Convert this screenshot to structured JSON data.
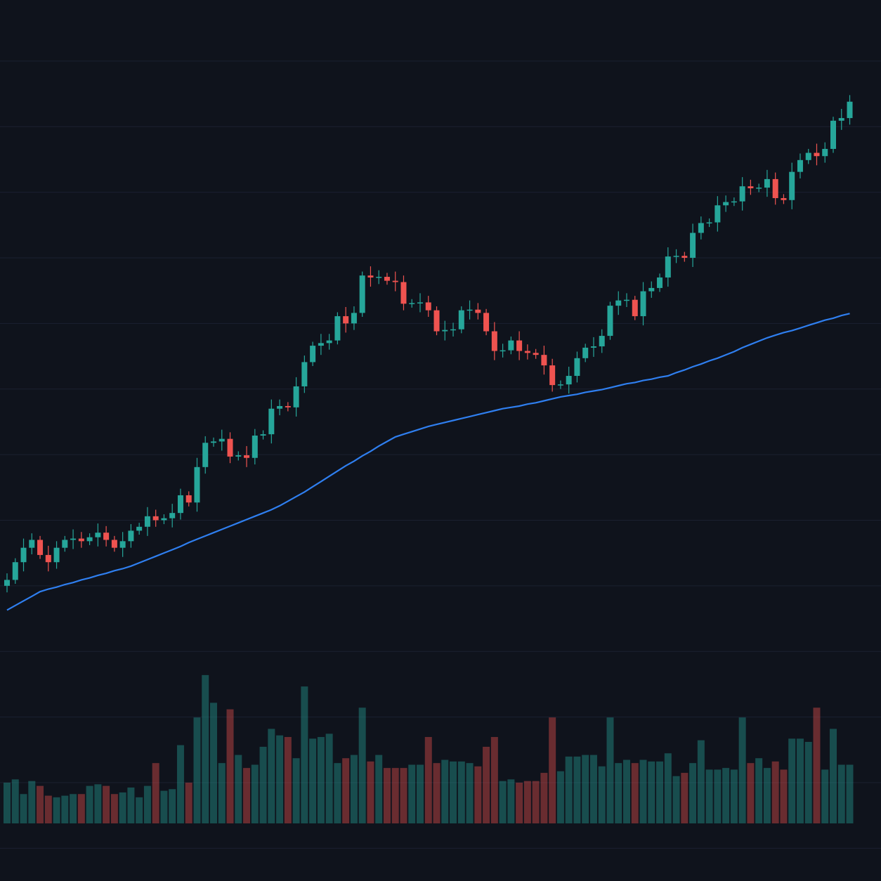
{
  "chart_data": {
    "type": "candlestick",
    "open": [
      40.0,
      40.9,
      43.6,
      45.8,
      47.0,
      44.7,
      43.6,
      45.8,
      47.0,
      47.2,
      46.8,
      47.4,
      48.1,
      47.0,
      45.8,
      46.8,
      48.4,
      49.0,
      50.6,
      50.0,
      50.3,
      51.1,
      53.8,
      52.7,
      58.1,
      61.8,
      62.0,
      62.4,
      59.7,
      59.9,
      59.5,
      62.9,
      63.1,
      67.0,
      67.4,
      67.2,
      70.4,
      74.1,
      76.6,
      77.0,
      77.4,
      81.1,
      80.0,
      81.6,
      87.3,
      87.0,
      87.1,
      86.5,
      86.3,
      83.0,
      83.1,
      83.2,
      82.0,
      78.8,
      79.0,
      79.1,
      82.0,
      82.1,
      81.6,
      78.8,
      75.8,
      75.9,
      77.4,
      75.8,
      75.5,
      75.2,
      73.6,
      70.6,
      70.7,
      72.0,
      74.7,
      76.3,
      76.5,
      78.1,
      82.7,
      83.5,
      83.6,
      81.1,
      84.9,
      85.4,
      87.0,
      90.2,
      90.3,
      90.0,
      93.8,
      95.3,
      95.4,
      98.0,
      98.5,
      98.6,
      100.9,
      100.6,
      100.7,
      102.0,
      99.1,
      98.8,
      103.1,
      104.9,
      106.0,
      105.5,
      106.6,
      110.9,
      111.3
    ],
    "high": [
      41.9,
      44.2,
      47.2,
      48.0,
      47.6,
      46.1,
      46.8,
      47.6,
      48.6,
      48.2,
      48.0,
      49.5,
      49.1,
      47.6,
      48.2,
      49.4,
      49.6,
      52.0,
      51.6,
      50.9,
      52.5,
      54.8,
      54.4,
      59.5,
      62.8,
      62.6,
      63.8,
      63.4,
      60.5,
      61.3,
      63.9,
      63.7,
      68.4,
      68.4,
      68.0,
      71.8,
      75.1,
      77.2,
      78.4,
      78.4,
      81.7,
      82.5,
      82.6,
      87.9,
      88.7,
      88.1,
      87.7,
      87.9,
      87.3,
      83.7,
      84.6,
      84.2,
      82.6,
      80.4,
      80.1,
      82.6,
      83.5,
      83.1,
      82.2,
      80.2,
      76.9,
      78.0,
      78.8,
      76.8,
      76.1,
      76.6,
      74.6,
      71.3,
      73.4,
      75.7,
      76.9,
      77.9,
      79.1,
      83.3,
      84.9,
      84.6,
      84.2,
      86.3,
      86.4,
      87.6,
      91.6,
      91.3,
      90.9,
      95.2,
      96.3,
      96.0,
      99.4,
      99.5,
      99.2,
      102.3,
      101.9,
      101.3,
      103.4,
      103.0,
      99.7,
      104.5,
      105.9,
      106.6,
      107.4,
      107.6,
      111.5,
      112.7,
      114.8
    ],
    "low": [
      39.0,
      40.3,
      42.2,
      44.8,
      44.1,
      42.2,
      42.6,
      45.2,
      45.6,
      45.8,
      46.2,
      46.0,
      46.0,
      45.2,
      44.4,
      45.8,
      47.8,
      47.6,
      49.0,
      49.4,
      48.9,
      50.1,
      52.1,
      51.3,
      57.1,
      61.2,
      60.6,
      58.7,
      59.1,
      58.1,
      58.5,
      62.3,
      61.7,
      66.0,
      66.6,
      65.8,
      69.4,
      73.5,
      75.2,
      76.0,
      76.8,
      78.6,
      79.0,
      81.0,
      85.6,
      86.0,
      85.9,
      84.9,
      82.0,
      82.4,
      81.7,
      81.0,
      78.2,
      77.4,
      78.0,
      78.5,
      80.6,
      80.6,
      78.2,
      74.4,
      74.8,
      75.3,
      74.4,
      74.5,
      74.6,
      72.2,
      69.6,
      70.0,
      69.3,
      71.0,
      74.1,
      74.9,
      75.5,
      77.5,
      81.3,
      82.5,
      80.5,
      79.7,
      83.9,
      84.8,
      85.6,
      89.2,
      89.4,
      88.6,
      92.8,
      94.7,
      94.0,
      97.0,
      97.9,
      97.2,
      99.6,
      100.0,
      99.3,
      98.1,
      98.2,
      97.4,
      102.1,
      104.3,
      104.1,
      104.5,
      106.0,
      109.5,
      110.3
    ],
    "close": [
      40.9,
      43.6,
      45.8,
      47.0,
      44.7,
      43.6,
      45.8,
      47.0,
      47.2,
      46.8,
      47.4,
      48.1,
      47.0,
      45.8,
      46.8,
      48.4,
      49.0,
      50.6,
      50.0,
      50.3,
      51.1,
      53.8,
      52.7,
      58.1,
      61.8,
      62.0,
      62.4,
      59.7,
      59.9,
      59.5,
      62.9,
      63.1,
      67.0,
      67.4,
      67.2,
      70.4,
      74.1,
      76.6,
      77.0,
      77.4,
      81.1,
      80.0,
      81.6,
      87.3,
      87.0,
      87.1,
      86.5,
      86.3,
      83.0,
      83.1,
      83.2,
      82.0,
      78.8,
      79.0,
      79.1,
      82.0,
      82.1,
      81.6,
      78.8,
      75.8,
      75.9,
      77.4,
      75.8,
      75.5,
      75.2,
      73.6,
      70.6,
      70.7,
      72.0,
      74.7,
      76.3,
      76.5,
      78.1,
      82.7,
      83.5,
      83.6,
      81.1,
      84.9,
      85.4,
      87.0,
      90.2,
      90.3,
      90.0,
      93.8,
      95.3,
      95.4,
      98.0,
      98.5,
      98.6,
      100.9,
      100.6,
      100.7,
      102.0,
      99.1,
      98.8,
      103.1,
      104.9,
      106.0,
      105.5,
      106.6,
      110.9,
      111.3,
      113.8
    ],
    "up_color": "#26a69a",
    "down_color": "#ef5350",
    "ylim": [
      -5,
      129.3
    ],
    "yticks": [
      0,
      10,
      20,
      30,
      40,
      50,
      60,
      70,
      80,
      90,
      100,
      110,
      120
    ],
    "grid": true,
    "moving_average": {
      "color": "#2f7ff0",
      "values": [
        36.3,
        37.0,
        37.7,
        38.4,
        39.1,
        39.5,
        39.8,
        40.2,
        40.5,
        40.9,
        41.2,
        41.6,
        41.9,
        42.3,
        42.6,
        43.0,
        43.5,
        44.0,
        44.5,
        45.0,
        45.5,
        46.0,
        46.6,
        47.1,
        47.6,
        48.1,
        48.6,
        49.1,
        49.6,
        50.1,
        50.6,
        51.1,
        51.6,
        52.2,
        52.9,
        53.6,
        54.3,
        55.1,
        55.9,
        56.7,
        57.5,
        58.3,
        59.0,
        59.8,
        60.5,
        61.3,
        62.0,
        62.7,
        63.1,
        63.5,
        63.9,
        64.3,
        64.6,
        64.9,
        65.2,
        65.5,
        65.8,
        66.1,
        66.4,
        66.7,
        67.0,
        67.2,
        67.4,
        67.7,
        67.9,
        68.2,
        68.5,
        68.8,
        69.0,
        69.2,
        69.5,
        69.7,
        69.9,
        70.2,
        70.5,
        70.8,
        71.0,
        71.3,
        71.5,
        71.8,
        72.0,
        72.5,
        72.9,
        73.4,
        73.8,
        74.3,
        74.7,
        75.2,
        75.7,
        76.3,
        76.8,
        77.3,
        77.8,
        78.2,
        78.6,
        78.9,
        79.3,
        79.7,
        80.1,
        80.5,
        80.8,
        81.2,
        81.5
      ]
    },
    "volume": {
      "ylim": [
        0,
        100
      ],
      "values": [
        25,
        27,
        18,
        26,
        23,
        17,
        16,
        17,
        18,
        18,
        23,
        24,
        23,
        18,
        19,
        22,
        16,
        23,
        37,
        20,
        21,
        48,
        25,
        65,
        91,
        74,
        37,
        70,
        42,
        34,
        36,
        47,
        58,
        54,
        53,
        40,
        84,
        52,
        53,
        55,
        37,
        40,
        42,
        71,
        38,
        42,
        34,
        34,
        34,
        36,
        36,
        53,
        37,
        39,
        38,
        38,
        37,
        35,
        47,
        53,
        26,
        27,
        25,
        26,
        26,
        31,
        65,
        32,
        41,
        41,
        42,
        42,
        35,
        65,
        37,
        39,
        37,
        39,
        38,
        38,
        43,
        29,
        31,
        37,
        51,
        33,
        33,
        34,
        33,
        65,
        37,
        40,
        34,
        38,
        33,
        52,
        52,
        50,
        71,
        33,
        58,
        36,
        36
      ]
    }
  }
}
